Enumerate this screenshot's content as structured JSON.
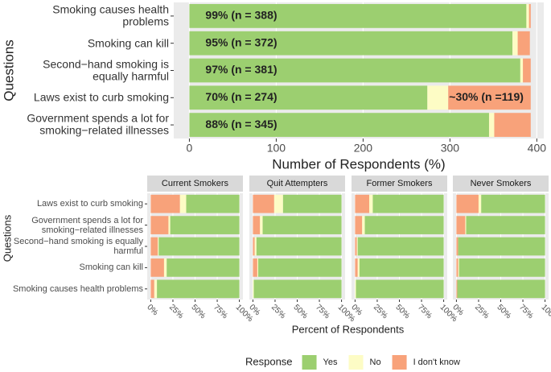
{
  "chart_data": [
    {
      "type": "bar",
      "orientation": "horizontal",
      "stacked": true,
      "ylabel": "Questions",
      "xlabel": "Number of Respondents (%)",
      "categories": [
        "Smoking causes health\nproblems",
        "Smoking can kill",
        "Second−hand smoking is\nequally harmful",
        "Laws exist to curb smoking",
        "Government spends a lot for\nsmoking−related illnesses"
      ],
      "series": [
        {
          "name": "Yes",
          "color": "#9ccf70",
          "values": [
            388,
            372,
            381,
            274,
            345
          ],
          "value_labels": [
            "99% (n = 388)",
            "95% (n = 372)",
            "97% (n = 381)",
            "70% (n = 274)",
            "88% (n = 345)"
          ]
        },
        {
          "name": "No",
          "color": "#fdfcc5",
          "values": [
            3,
            6,
            3,
            24,
            6
          ]
        },
        {
          "name": "I don't know",
          "color": "#f8a27a",
          "values": [
            2,
            14,
            9,
            95,
            42
          ]
        }
      ],
      "annotations": [
        {
          "text": "~30% (n =119)",
          "category": 3
        }
      ],
      "xlim": [
        -18,
        408
      ],
      "xticks": [
        0,
        100,
        200,
        300,
        400
      ],
      "grid": true
    },
    {
      "type": "bar",
      "orientation": "horizontal",
      "stacked": true,
      "faceted": true,
      "ylabel": "Questions",
      "xlabel": "Percent of Respondents",
      "categories": [
        "Laws exist to curb smoking",
        "Government spends a lot for\nsmoking−related illnesses",
        "Second−hand smoking is equally\nharmful",
        "Smoking can kill",
        "Smoking causes health problems"
      ],
      "legend": {
        "title": "Response",
        "position": "bottom"
      },
      "facets": [
        {
          "title": "Current Smokers",
          "series": [
            {
              "name": "Yes",
              "color": "#9ccf70",
              "values": [
                60,
                78,
                91,
                82,
                93
              ]
            },
            {
              "name": "No",
              "color": "#fdfcc5",
              "values": [
                7,
                2,
                1,
                3,
                3
              ]
            },
            {
              "name": "I don't know",
              "color": "#f8a27a",
              "values": [
                33,
                20,
                8,
                15,
                4
              ]
            }
          ]
        },
        {
          "title": "Quit Attempters",
          "series": [
            {
              "name": "Yes",
              "color": "#9ccf70",
              "values": [
                66,
                89,
                96,
                94,
                99
              ]
            },
            {
              "name": "No",
              "color": "#fdfcc5",
              "values": [
                10,
                3,
                2,
                1,
                1
              ]
            },
            {
              "name": "I don't know",
              "color": "#f8a27a",
              "values": [
                24,
                8,
                2,
                5,
                0
              ]
            }
          ]
        },
        {
          "title": "Former Smokers",
          "series": [
            {
              "name": "Yes",
              "color": "#9ccf70",
              "values": [
                80,
                89,
                97,
                95,
                99
              ]
            },
            {
              "name": "No",
              "color": "#fdfcc5",
              "values": [
                4,
                3,
                1,
                2,
                1
              ]
            },
            {
              "name": "I don't know",
              "color": "#f8a27a",
              "values": [
                16,
                8,
                2,
                3,
                0
              ]
            }
          ]
        },
        {
          "title": "Never Smokers",
          "series": [
            {
              "name": "Yes",
              "color": "#9ccf70",
              "values": [
                72,
                89,
                98,
                97,
                99
              ]
            },
            {
              "name": "No",
              "color": "#fdfcc5",
              "values": [
                3,
                1,
                0,
                1,
                0
              ]
            },
            {
              "name": "I don't know",
              "color": "#f8a27a",
              "values": [
                25,
                10,
                2,
                2,
                1
              ]
            }
          ]
        }
      ],
      "xlim": [
        -4,
        104
      ],
      "xticks": [
        {
          "value": 0,
          "label": "0%"
        },
        {
          "value": 25,
          "label": "25%"
        },
        {
          "value": 50,
          "label": "50%"
        },
        {
          "value": 75,
          "label": "75%"
        },
        {
          "value": 100,
          "label": "100%"
        }
      ],
      "grid": true
    }
  ]
}
